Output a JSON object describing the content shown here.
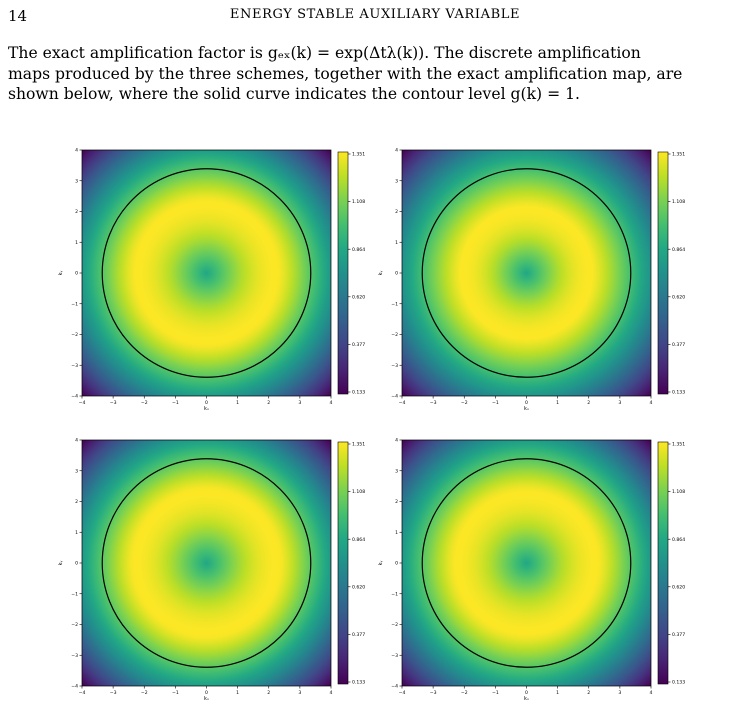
{
  "header": {
    "page_number": "14",
    "running_title": "ENERGY STABLE AUXILIARY VARIABLE"
  },
  "paragraph": {
    "line1": "The exact amplification factor is gₑₓ(k) = exp(Δtλ(k)).  The discrete amplification",
    "line2": "maps produced by the three schemes, together with the exact amplification map, are",
    "line3": "shown below, where the solid curve indicates the contour level g(k) = 1."
  },
  "colors": {
    "viridis_low": "#440154",
    "viridis_mid": "#21918c",
    "viridis_high": "#fde725",
    "contour": "#000000"
  },
  "chart_data": [
    {
      "type": "heatmap",
      "title": "",
      "xlabel": "kₓ",
      "ylabel": "kᵧ",
      "xlim": [
        -4,
        4
      ],
      "ylim": [
        -4,
        4
      ],
      "xticks": [
        "−4",
        "−3",
        "−2",
        "−1",
        "0",
        "1",
        "2",
        "3",
        "4"
      ],
      "yticks": [
        "−4",
        "−3",
        "−2",
        "−1",
        "0",
        "1",
        "2",
        "3",
        "4"
      ],
      "colorbar_ticks": [
        "1.351",
        "1.108",
        "0.864",
        "0.620",
        "0.377",
        "0.133"
      ],
      "color_range": [
        0.133,
        1.351
      ],
      "contour_level": 1,
      "contour_radius": 3.35,
      "peak_radius": 2.3
    },
    {
      "type": "heatmap",
      "title": "",
      "xlabel": "kₓ",
      "ylabel": "kᵧ",
      "xlim": [
        -4,
        4
      ],
      "ylim": [
        -4,
        4
      ],
      "xticks": [
        "−4",
        "−3",
        "−2",
        "−1",
        "0",
        "1",
        "2",
        "3",
        "4"
      ],
      "yticks": [
        "−4",
        "−3",
        "−2",
        "−1",
        "0",
        "1",
        "2",
        "3",
        "4"
      ],
      "colorbar_ticks": [
        "1.351",
        "1.108",
        "0.864",
        "0.620",
        "0.377",
        "0.133"
      ],
      "color_range": [
        0.133,
        1.351
      ],
      "contour_level": 1,
      "contour_radius": 3.35,
      "peak_radius": 2.1
    },
    {
      "type": "heatmap",
      "title": "",
      "xlabel": "kₓ",
      "ylabel": "kᵧ",
      "xlim": [
        -4,
        4
      ],
      "ylim": [
        -4,
        4
      ],
      "xticks": [
        "−4",
        "−3",
        "−2",
        "−1",
        "0",
        "1",
        "2",
        "3",
        "4"
      ],
      "yticks": [
        "−4",
        "−3",
        "−2",
        "−1",
        "0",
        "1",
        "2",
        "3",
        "4"
      ],
      "colorbar_ticks": [
        "1.351",
        "1.108",
        "0.864",
        "0.620",
        "0.377",
        "0.133"
      ],
      "color_range": [
        0.133,
        1.351
      ],
      "contour_level": 1,
      "contour_radius": 3.35,
      "peak_radius": 2.35
    },
    {
      "type": "heatmap",
      "title": "",
      "xlabel": "kₓ",
      "ylabel": "kᵧ",
      "xlim": [
        -4,
        4
      ],
      "ylim": [
        -4,
        4
      ],
      "xticks": [
        "−4",
        "−3",
        "−2",
        "−1",
        "0",
        "1",
        "2",
        "3",
        "4"
      ],
      "yticks": [
        "−4",
        "−3",
        "−2",
        "−1",
        "0",
        "1",
        "2",
        "3",
        "4"
      ],
      "colorbar_ticks": [
        "1.351",
        "1.108",
        "0.864",
        "0.620",
        "0.377",
        "0.133"
      ],
      "color_range": [
        0.133,
        1.351
      ],
      "contour_level": 1,
      "contour_radius": 3.35,
      "peak_radius": 2.3
    }
  ]
}
